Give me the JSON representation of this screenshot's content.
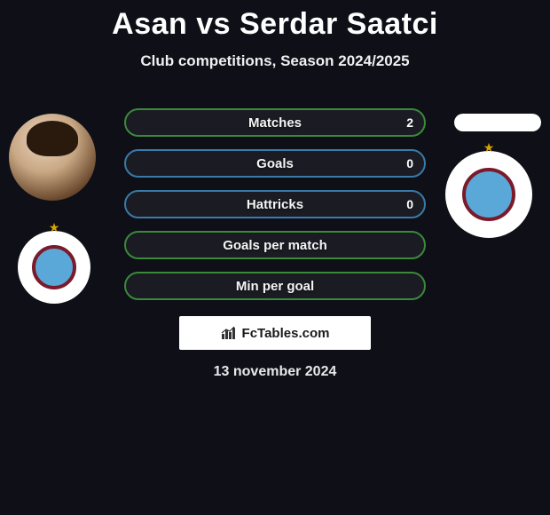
{
  "title": "Asan vs Serdar Saatci",
  "subtitle": "Club competitions, Season 2024/2025",
  "date": "13 november 2024",
  "brand": "FcTables.com",
  "colors": {
    "background": "#0e0f17",
    "bar_bg": "#1a1b23",
    "border_green": "#3a8a3a",
    "border_blue": "#3a7aa8",
    "accent_maroon": "#7a1a2a",
    "accent_blue": "#5aa8d8",
    "text": "#f5f5f5"
  },
  "stats": [
    {
      "label": "Matches",
      "left_value": "2",
      "border": "#3a8a3a",
      "show_value": true
    },
    {
      "label": "Goals",
      "left_value": "0",
      "border": "#3a7aa8",
      "show_value": true
    },
    {
      "label": "Hattricks",
      "left_value": "0",
      "border": "#3a7aa8",
      "show_value": true
    },
    {
      "label": "Goals per match",
      "left_value": "",
      "border": "#3a8a3a",
      "show_value": false
    },
    {
      "label": "Min per goal",
      "left_value": "",
      "border": "#3a8a3a",
      "show_value": false
    }
  ],
  "crests": {
    "left": {
      "ring_color": "#7a1a2a",
      "fill_color": "#5aa8d8"
    },
    "right": {
      "ring_color": "#7a1a2a",
      "fill_color": "#5aa8d8"
    }
  }
}
